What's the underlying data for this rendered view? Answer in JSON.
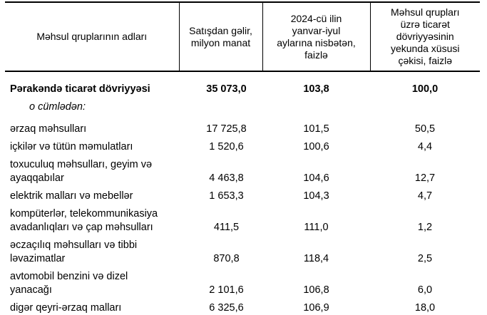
{
  "table": {
    "columns": [
      {
        "label": "Məhsul qruplarının adları"
      },
      {
        "label": "Satışdan gəlir,\nmilyon manat"
      },
      {
        "label": "2024-cü ilin\nyanvar-iyul\naylarına nisbətən,\nfaizlə"
      },
      {
        "label": "Məhsul qrupları\nüzrə ticarət\ndövriyyəsinin\nyekunda xüsusi\nçəkisi, faizlə"
      }
    ],
    "rows": [
      {
        "style": "total",
        "label": "Pərakəndə ticarət dövriyyəsi",
        "revenue": "35 073,0",
        "index": "103,8",
        "share": "100,0"
      },
      {
        "style": "subheader",
        "label": "o cümlədən:",
        "revenue": "",
        "index": "",
        "share": ""
      },
      {
        "style": "normal",
        "label": "ərzaq məhsulları",
        "revenue": "17 725,8",
        "index": "101,5",
        "share": "50,5"
      },
      {
        "style": "normal",
        "label": "içkilər və tütün məmulatları",
        "revenue": "1 520,6",
        "index": "100,6",
        "share": "4,4"
      },
      {
        "style": "normal",
        "label": "toxuculuq məhsulları, geyim və\nayaqqabılar",
        "revenue": "4 463,8",
        "index": "104,6",
        "share": "12,7"
      },
      {
        "style": "normal",
        "label": "elektrik malları və mebellər",
        "revenue": "1 653,3",
        "index": "104,3",
        "share": "4,7"
      },
      {
        "style": "normal",
        "label": "kompüterlər, telekommunikasiya\navadanlıqları və çap məhsulları",
        "revenue": "411,5",
        "index": "111,0",
        "share": "1,2"
      },
      {
        "style": "normal",
        "label": "əczaçılıq məhsulları və tibbi\nləvazimatlar",
        "revenue": "870,8",
        "index": "118,4",
        "share": "2,5"
      },
      {
        "style": "normal",
        "label": "avtomobil benzini və dizel\nyanacağı",
        "revenue": "2 101,6",
        "index": "106,8",
        "share": "6,0"
      },
      {
        "style": "last",
        "label": "digər qeyri-ərzaq malları",
        "revenue": "6 325,6",
        "index": "106,9",
        "share": "18,0"
      }
    ]
  }
}
